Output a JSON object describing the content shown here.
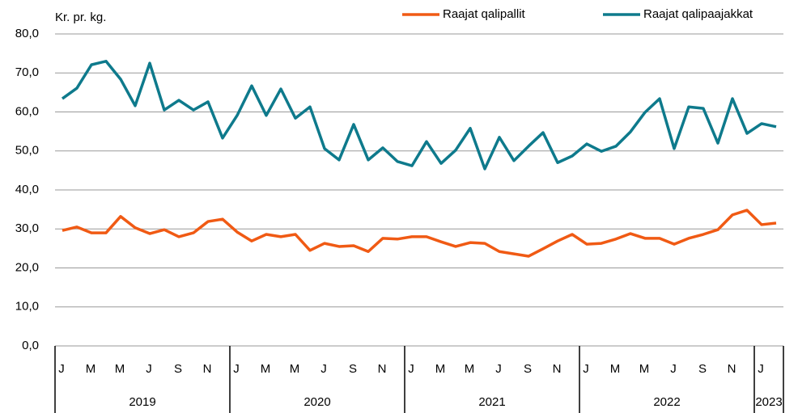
{
  "chart_data": {
    "type": "line",
    "y_label": "Kr. pr. kg.",
    "categories": [
      "J",
      null,
      "M",
      null,
      "M",
      null,
      "J",
      null,
      "S",
      null,
      "N",
      null,
      "J",
      null,
      "M",
      null,
      "M",
      null,
      "J",
      null,
      "S",
      null,
      "N",
      null,
      "J",
      null,
      "M",
      null,
      "M",
      null,
      "J",
      null,
      "S",
      null,
      "N",
      null,
      "J",
      null,
      "M",
      null,
      "M",
      null,
      "J",
      null,
      "S",
      null,
      "N",
      null,
      "J",
      null
    ],
    "years": [
      "2019",
      "2020",
      "2021",
      "2022",
      "2023"
    ],
    "series": [
      {
        "name": "Raajat qalipallit",
        "color": "#f05a14",
        "values": [
          29.6,
          30.5,
          29.0,
          29.0,
          33.2,
          30.3,
          28.8,
          29.8,
          28.0,
          29.0,
          31.9,
          32.5,
          29.2,
          26.9,
          28.6,
          28.0,
          28.6,
          24.5,
          26.3,
          25.5,
          25.7,
          24.2,
          27.6,
          27.4,
          28.0,
          28.0,
          26.7,
          25.5,
          26.5,
          26.3,
          24.2,
          23.6,
          23.0,
          24.9,
          26.9,
          28.6,
          26.1,
          26.3,
          27.4,
          28.8,
          27.6,
          27.6,
          26.1,
          27.6,
          28.6,
          29.8,
          33.6,
          34.8,
          31.1,
          31.5
        ]
      },
      {
        "name": "Raajat qalipaajakkat",
        "color": "#0e7a8c",
        "values": [
          63.4,
          66.1,
          72.1,
          73.0,
          68.4,
          61.6,
          72.5,
          60.5,
          63.0,
          60.5,
          62.6,
          53.3,
          59.1,
          66.7,
          59.1,
          65.9,
          58.4,
          61.3,
          50.6,
          47.7,
          56.8,
          47.7,
          50.8,
          47.3,
          46.2,
          52.4,
          46.8,
          50.2,
          55.8,
          45.4,
          53.5,
          47.5,
          51.2,
          54.7,
          47.0,
          48.7,
          51.8,
          49.9,
          51.2,
          54.9,
          59.9,
          63.4,
          50.6,
          61.3,
          60.9,
          52.0,
          63.4,
          54.5,
          57.0,
          56.2
        ]
      }
    ],
    "ylim": [
      0,
      80
    ],
    "yticks": [
      {
        "value": 0,
        "label": "0,0"
      },
      {
        "value": 10,
        "label": "10,0"
      },
      {
        "value": 20,
        "label": "20,0"
      },
      {
        "value": 30,
        "label": "30,0"
      },
      {
        "value": 40,
        "label": "40,0"
      },
      {
        "value": 50,
        "label": "50,0"
      },
      {
        "value": 60,
        "label": "60,0"
      },
      {
        "value": 70,
        "label": "70,0"
      },
      {
        "value": 80,
        "label": "80,0"
      }
    ],
    "grid": true,
    "legend": "top-right"
  }
}
